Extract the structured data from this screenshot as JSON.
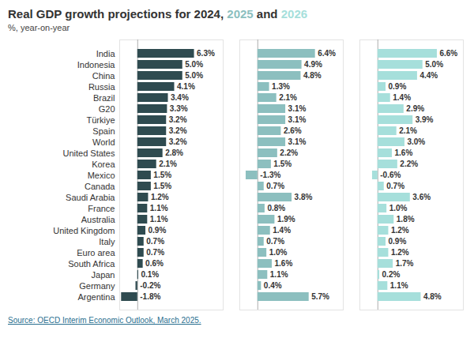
{
  "chart_data": {
    "type": "bar",
    "orientation": "horizontal",
    "title": "Real GDP growth projections for 2024, 2025 and 2026",
    "subtitle": "%, year-on-year",
    "source": "Source: OECD Interim Economic Outlook, March 2025.",
    "categories": [
      "India",
      "Indonesia",
      "China",
      "Russia",
      "Brazil",
      "G20",
      "Türkiye",
      "Spain",
      "World",
      "United States",
      "Korea",
      "Mexico",
      "Canada",
      "Saudi Arabia",
      "France",
      "Australia",
      "United Kingdom",
      "Italy",
      "Euro area",
      "South Africa",
      "Japan",
      "Germany",
      "Argentina"
    ],
    "series": [
      {
        "name": "2024",
        "color": "#2f4b50",
        "values": [
          6.3,
          5.0,
          5.0,
          4.1,
          3.4,
          3.3,
          3.2,
          3.2,
          3.2,
          2.8,
          2.1,
          1.5,
          1.5,
          1.2,
          1.1,
          1.1,
          0.9,
          0.7,
          0.7,
          0.6,
          0.1,
          -0.2,
          -1.8
        ],
        "value_labels": [
          "6.3%",
          "5.0%",
          "5.0%",
          "4.1%",
          "3.4%",
          "3.3%",
          "3.2%",
          "3.2%",
          "3.2%",
          "2.8%",
          "2.1%",
          "1.5%",
          "1.5%",
          "1.2%",
          "1.1%",
          "1.1%",
          "0.9%",
          "0.7%",
          "0.7%",
          "0.6%",
          "0.1%",
          "-0.2%",
          "-1.8%"
        ]
      },
      {
        "name": "2025",
        "color": "#8cbfbf",
        "values": [
          6.4,
          4.9,
          4.8,
          1.3,
          2.1,
          3.1,
          3.1,
          2.6,
          3.1,
          2.2,
          1.5,
          -1.3,
          0.7,
          3.8,
          0.8,
          1.9,
          1.4,
          0.7,
          1.0,
          1.6,
          1.1,
          0.4,
          5.7
        ],
        "value_labels": [
          "6.4%",
          "4.9%",
          "4.8%",
          "1.3%",
          "2.1%",
          "3.1%",
          "3.1%",
          "2.6%",
          "3.1%",
          "2.2%",
          "1.5%",
          "-1.3%",
          "0.7%",
          "3.8%",
          "0.8%",
          "1.9%",
          "1.4%",
          "0.7%",
          "1.0%",
          "1.6%",
          "1.1%",
          "0.4%",
          "5.7%"
        ]
      },
      {
        "name": "2026",
        "color": "#a6dfdb",
        "values": [
          6.6,
          5.0,
          4.4,
          0.9,
          1.4,
          2.9,
          3.9,
          2.1,
          3.0,
          1.6,
          2.2,
          -0.6,
          0.7,
          3.6,
          1.0,
          1.8,
          1.2,
          0.9,
          1.2,
          1.7,
          0.2,
          1.1,
          4.8
        ],
        "value_labels": [
          "6.6%",
          "5.0%",
          "4.4%",
          "0.9%",
          "1.4%",
          "2.9%",
          "3.9%",
          "2.1%",
          "3.0%",
          "1.6%",
          "2.2%",
          "-0.6%",
          "0.7%",
          "3.6%",
          "1.0%",
          "1.8%",
          "1.2%",
          "0.9%",
          "1.2%",
          "1.7%",
          "0.2%",
          "1.1%",
          "4.8%"
        ]
      }
    ],
    "xlim": [
      -2,
      9.5
    ],
    "data_labels": true,
    "tick_labels": "y"
  }
}
